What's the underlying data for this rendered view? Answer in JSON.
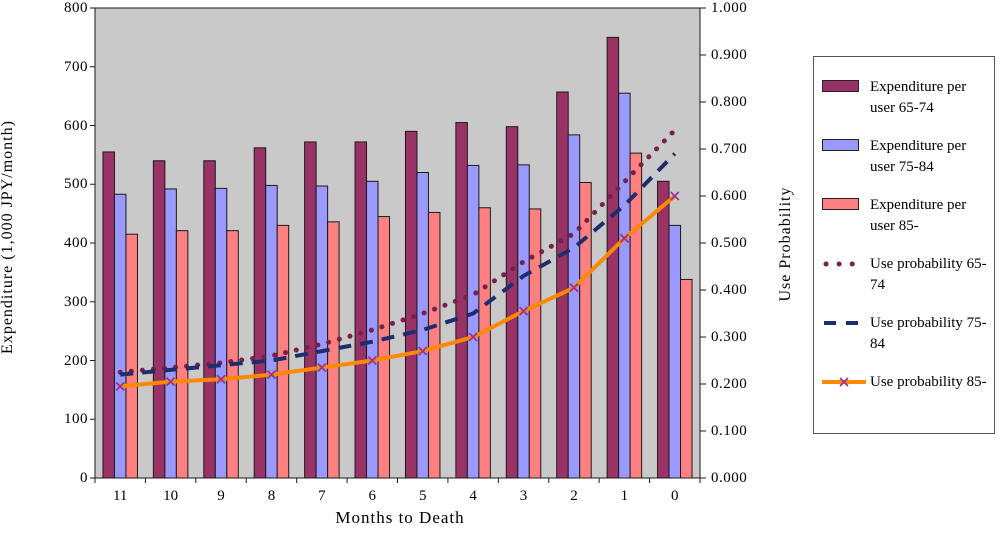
{
  "figure": {
    "left_axis_title": "Expenditure (1,000 JPY/month)",
    "right_axis_title": "Use Probability",
    "x_axis_title": "Months to Death"
  },
  "chart_data": {
    "type": "combo-bar-line",
    "title": "",
    "x": {
      "label": "Months to Death",
      "categories": [
        "11",
        "10",
        "9",
        "8",
        "7",
        "6",
        "5",
        "4",
        "3",
        "2",
        "1",
        "0"
      ]
    },
    "y_left": {
      "label": "Expenditure (1,000 JPY/month)",
      "min": 0,
      "max": 800,
      "step": 100
    },
    "y_right": {
      "label": "Use Probability",
      "min": 0.0,
      "max": 1.0,
      "step": 0.1,
      "decimals": 3
    },
    "grid": false,
    "plot_bg": "#C9C9C9",
    "legend_position": "right",
    "bar_series": [
      {
        "name": "Expenditure per user 65-74",
        "color": "#993366",
        "values": [
          555,
          540,
          540,
          562,
          572,
          572,
          590,
          605,
          598,
          657,
          750,
          505
        ]
      },
      {
        "name": "Expenditure per user 75-84",
        "color": "#9999FF",
        "values": [
          483,
          492,
          493,
          498,
          497,
          505,
          520,
          532,
          533,
          584,
          655,
          430
        ]
      },
      {
        "name": "Expenditure per user 85-",
        "color": "#FF8080",
        "values": [
          415,
          421,
          421,
          430,
          436,
          445,
          452,
          460,
          458,
          503,
          553,
          338
        ]
      }
    ],
    "line_series": [
      {
        "name": "Use probability 65-74",
        "color": "#78204C",
        "style": "dotted",
        "values": [
          0.225,
          0.235,
          0.245,
          0.26,
          0.285,
          0.315,
          0.35,
          0.39,
          0.46,
          0.52,
          0.63,
          0.74
        ]
      },
      {
        "name": "Use probability 75-84",
        "color": "#1F2C6E",
        "style": "dashed",
        "values": [
          0.22,
          0.23,
          0.24,
          0.25,
          0.27,
          0.29,
          0.315,
          0.35,
          0.43,
          0.49,
          0.58,
          0.69
        ]
      },
      {
        "name": "Use probability 85-",
        "color": "#FF8800",
        "style": "solid-x",
        "marker_color": "#993399",
        "values": [
          0.195,
          0.205,
          0.21,
          0.22,
          0.235,
          0.25,
          0.27,
          0.3,
          0.355,
          0.405,
          0.51,
          0.6
        ]
      }
    ]
  }
}
